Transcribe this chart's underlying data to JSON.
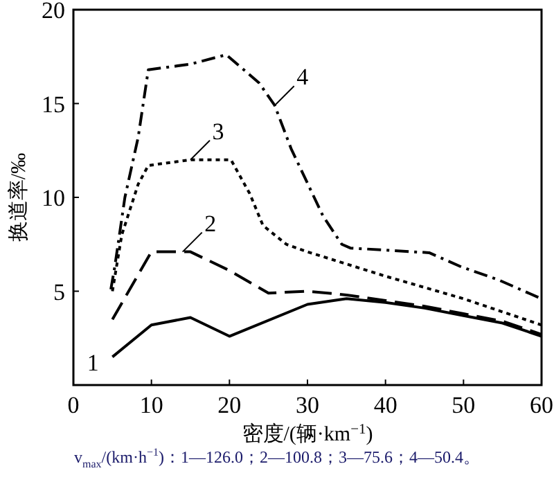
{
  "chart_data": {
    "type": "line",
    "xlabel": "密度/(辆·km$^{−1}$)",
    "ylabel": "换道率/‰",
    "xlim": [
      0,
      60
    ],
    "xticks": [
      0,
      10,
      20,
      30,
      40,
      50,
      60
    ],
    "ylim": [
      0,
      20
    ],
    "yticks": [
      5,
      10,
      15,
      20
    ],
    "grid": false,
    "series": [
      {
        "color": "#000000",
        "line_style": "solid",
        "x": [
          5,
          10,
          15,
          20,
          30,
          35,
          40,
          45,
          50,
          55,
          60
        ],
        "values": [
          1.5,
          3.2,
          3.6,
          2.6,
          4.3,
          4.6,
          4.4,
          4.1,
          3.7,
          3.3,
          2.6
        ]
      },
      {
        "color": "#000000",
        "line_style": "dashed",
        "x": [
          5,
          10,
          15,
          20,
          25,
          30,
          35,
          40,
          45,
          50,
          55,
          60
        ],
        "values": [
          3.5,
          7.1,
          7.1,
          6.1,
          4.9,
          5.0,
          4.8,
          4.5,
          4.2,
          3.8,
          3.4,
          2.7
        ]
      },
      {
        "color": "#000000",
        "line_style": "dotted",
        "x": [
          5,
          6.2,
          8.3,
          9.6,
          15,
          20.2,
          22.6,
          24.3,
          27.3,
          30,
          40,
          50,
          60
        ],
        "values": [
          5.0,
          8.0,
          10.7,
          11.7,
          12.0,
          12.0,
          10.2,
          8.5,
          7.5,
          7.1,
          5.8,
          4.6,
          3.2
        ]
      },
      {
        "color": "#000000",
        "line_style": "dashdot",
        "x": [
          4.8,
          5.3,
          6.6,
          8.3,
          9.6,
          15,
          19.6,
          23.8,
          25.8,
          27.9,
          32,
          34.4,
          35.5,
          45.6,
          49.7,
          54.5,
          60
        ],
        "values": [
          5.1,
          6.3,
          10.0,
          13.2,
          16.8,
          17.1,
          17.6,
          16.1,
          14.9,
          12.6,
          9.0,
          7.5,
          7.3,
          7.05,
          6.3,
          5.6,
          4.6
        ]
      }
    ],
    "annotations": [
      {
        "text": "1",
        "x": 5,
        "y": 1.5
      },
      {
        "text": "2",
        "x": 14,
        "y": 7.1
      },
      {
        "text": "3",
        "x": 15,
        "y": 12.0
      },
      {
        "text": "4",
        "x": 25.8,
        "y": 14.9
      },
      "v$_{max}$/(km·h$^{−1}$)：1—126.0；2—100.8；3—75.6；4—50.4。"
    ]
  }
}
